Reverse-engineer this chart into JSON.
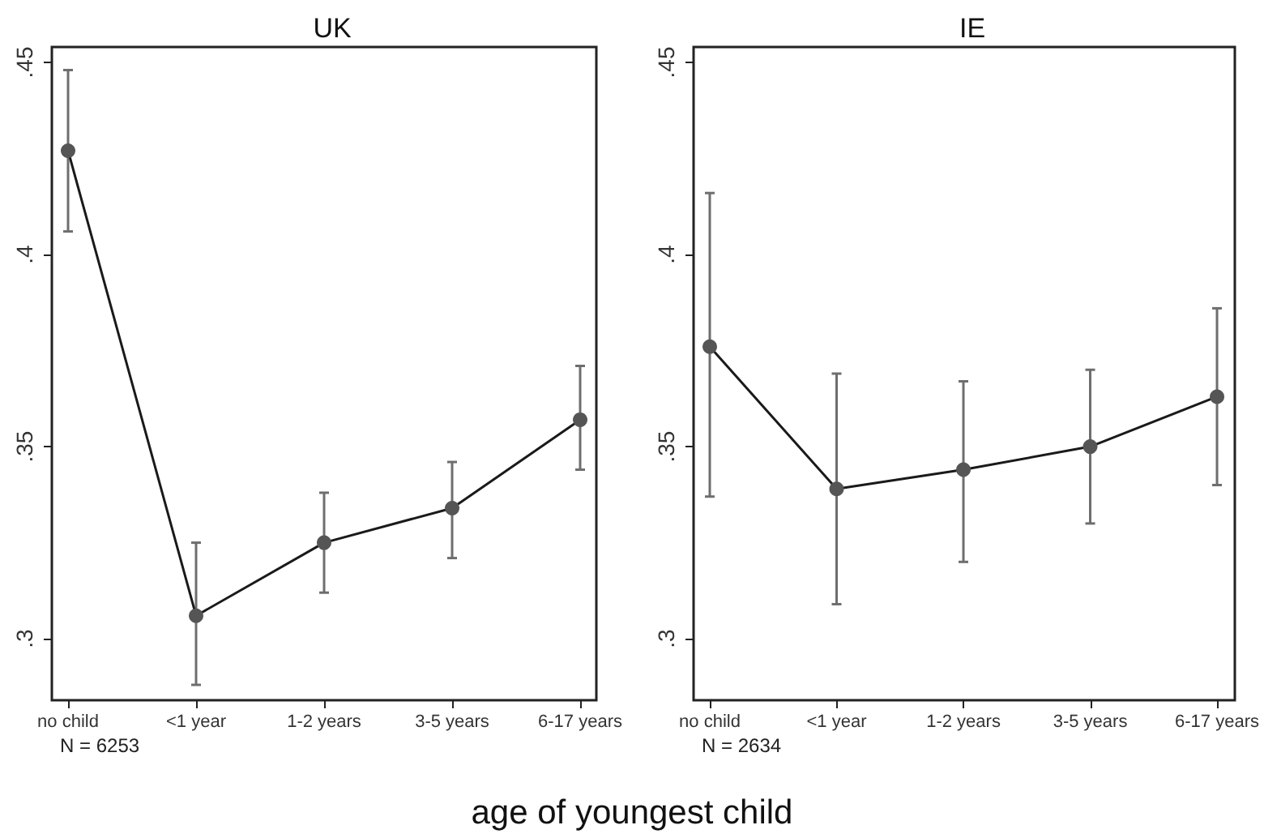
{
  "chart_data": [
    {
      "type": "line",
      "title": "UK",
      "xlabel": "age of youngest child",
      "annotations": [
        "N = 6253"
      ],
      "categories": [
        "no child",
        "<1 year",
        "1-2 years",
        "3-5 years",
        "6-17 years"
      ],
      "series": [
        {
          "color": "#555555",
          "values": [
            0.427,
            0.306,
            0.325,
            0.334,
            0.357
          ],
          "errors": [
            [
              0.406,
              0.448
            ],
            [
              0.288,
              0.325
            ],
            [
              0.312,
              0.338
            ],
            [
              0.321,
              0.346
            ],
            [
              0.344,
              0.371
            ]
          ]
        }
      ],
      "ylim": [
        0.284,
        0.454
      ],
      "yticks": [
        {
          "value": 0.3,
          "label": ".3"
        },
        {
          "value": 0.35,
          "label": ".35"
        },
        {
          "value": 0.4,
          "label": ".4"
        },
        {
          "value": 0.45,
          "label": ".45"
        }
      ],
      "grid": false,
      "marker": "circle",
      "line_style": "solid",
      "legend": false
    },
    {
      "type": "line",
      "title": "IE",
      "annotations": [
        "N = 2634"
      ],
      "categories": [
        "no child",
        "<1 year",
        "1-2 years",
        "3-5 years",
        "6-17 years"
      ],
      "series": [
        {
          "color": "#555555",
          "values": [
            0.376,
            0.339,
            0.344,
            0.35,
            0.363
          ],
          "errors": [
            [
              0.337,
              0.416
            ],
            [
              0.309,
              0.369
            ],
            [
              0.32,
              0.367
            ],
            [
              0.33,
              0.37
            ],
            [
              0.34,
              0.386
            ]
          ]
        }
      ],
      "ylim": [
        0.284,
        0.454
      ],
      "yticks": [
        {
          "value": 0.3,
          "label": ".3"
        },
        {
          "value": 0.35,
          "label": ".35"
        },
        {
          "value": 0.4,
          "label": ".4"
        },
        {
          "value": 0.45,
          "label": ".45"
        }
      ],
      "grid": false,
      "marker": "circle",
      "line_style": "solid",
      "legend": false
    }
  ]
}
